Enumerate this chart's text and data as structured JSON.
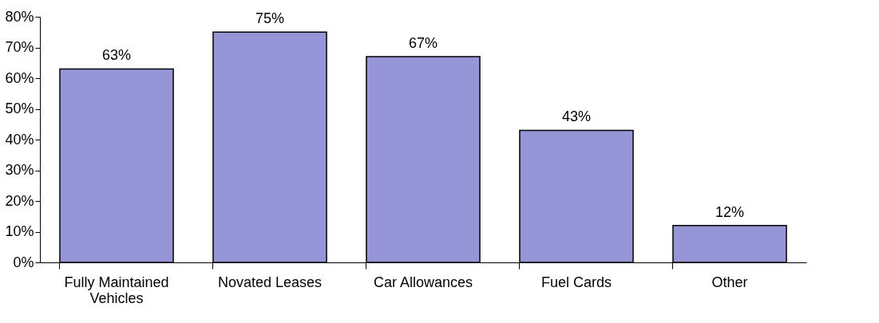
{
  "chart_data": {
    "type": "bar",
    "categories": [
      "Fully Maintained Vehicles",
      "Novated Leases",
      "Car Allowances",
      "Fuel Cards",
      "Other"
    ],
    "values": [
      63,
      75,
      67,
      43,
      12
    ],
    "value_labels": [
      "63%",
      "75%",
      "67%",
      "43%",
      "12%"
    ],
    "color": "#9595d8",
    "ylim": [
      0,
      80
    ],
    "yticks": [
      {
        "value": 0,
        "label": "0%"
      },
      {
        "value": 10,
        "label": "10%"
      },
      {
        "value": 20,
        "label": "20%"
      },
      {
        "value": 30,
        "label": "30%"
      },
      {
        "value": 40,
        "label": "40%"
      },
      {
        "value": 50,
        "label": "50%"
      },
      {
        "value": 60,
        "label": "60%"
      },
      {
        "value": 70,
        "label": "70%"
      },
      {
        "value": 80,
        "label": "80%"
      }
    ],
    "grid": false
  }
}
